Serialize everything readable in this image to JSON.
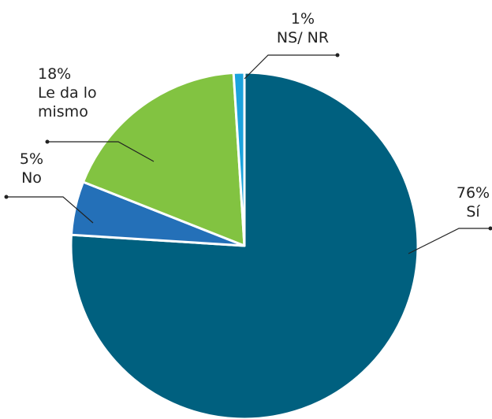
{
  "chart_data": {
    "type": "pie",
    "categories": [
      "Sí",
      "No",
      "Le da lo mismo",
      "NS/ NR"
    ],
    "values": [
      76,
      5,
      18,
      1
    ],
    "value_labels": [
      "76%",
      "5%",
      "18%",
      "1%"
    ],
    "colors": [
      "#00607f",
      "#2470b8",
      "#82c341",
      "#1ba3dd"
    ]
  }
}
